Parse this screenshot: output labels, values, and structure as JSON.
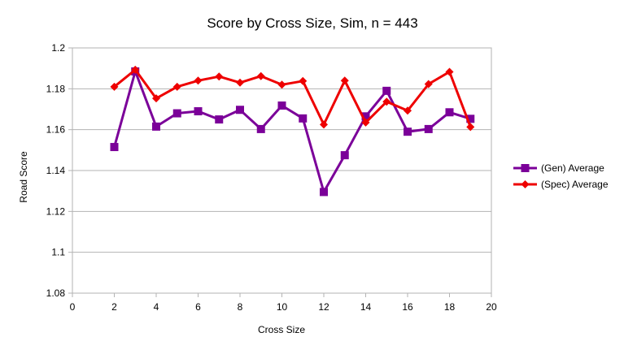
{
  "chart_data": {
    "type": "line",
    "title": "Score by Cross Size, Sim, n = 443",
    "xlabel": "Cross Size",
    "ylabel": "Road Score",
    "xlim": [
      0,
      20
    ],
    "ylim": [
      1.08,
      1.2
    ],
    "xticks": [
      0,
      2,
      4,
      6,
      8,
      10,
      12,
      14,
      16,
      18,
      20
    ],
    "yticks": [
      1.08,
      1.1,
      1.12,
      1.14,
      1.16,
      1.18,
      1.2
    ],
    "xtick_labels": [
      "0",
      "2",
      "4",
      "6",
      "8",
      "10",
      "12",
      "14",
      "16",
      "18",
      "20"
    ],
    "ytick_labels": [
      "1.08",
      "1.1",
      "1.12",
      "1.14",
      "1.16",
      "1.18",
      "1.2"
    ],
    "grid": true,
    "legend_position": "right",
    "x": [
      2,
      3,
      4,
      5,
      6,
      7,
      8,
      9,
      10,
      11,
      12,
      13,
      14,
      15,
      16,
      17,
      18,
      19
    ],
    "series": [
      {
        "name": "(Gen) Average",
        "color": "#7b0099",
        "marker": "square",
        "values": [
          1.1515,
          1.1885,
          1.1615,
          1.168,
          1.169,
          1.165,
          1.1697,
          1.1603,
          1.1718,
          1.1655,
          1.1295,
          1.1475,
          1.1665,
          1.179,
          1.159,
          1.1603,
          1.1685,
          1.1653
        ]
      },
      {
        "name": "(Spec) Average",
        "color": "#ee0000",
        "marker": "diamond",
        "values": [
          1.181,
          1.1893,
          1.1753,
          1.181,
          1.184,
          1.186,
          1.183,
          1.1862,
          1.182,
          1.1838,
          1.1625,
          1.184,
          1.1635,
          1.1737,
          1.1693,
          1.1823,
          1.1883,
          1.1613
        ]
      }
    ]
  }
}
